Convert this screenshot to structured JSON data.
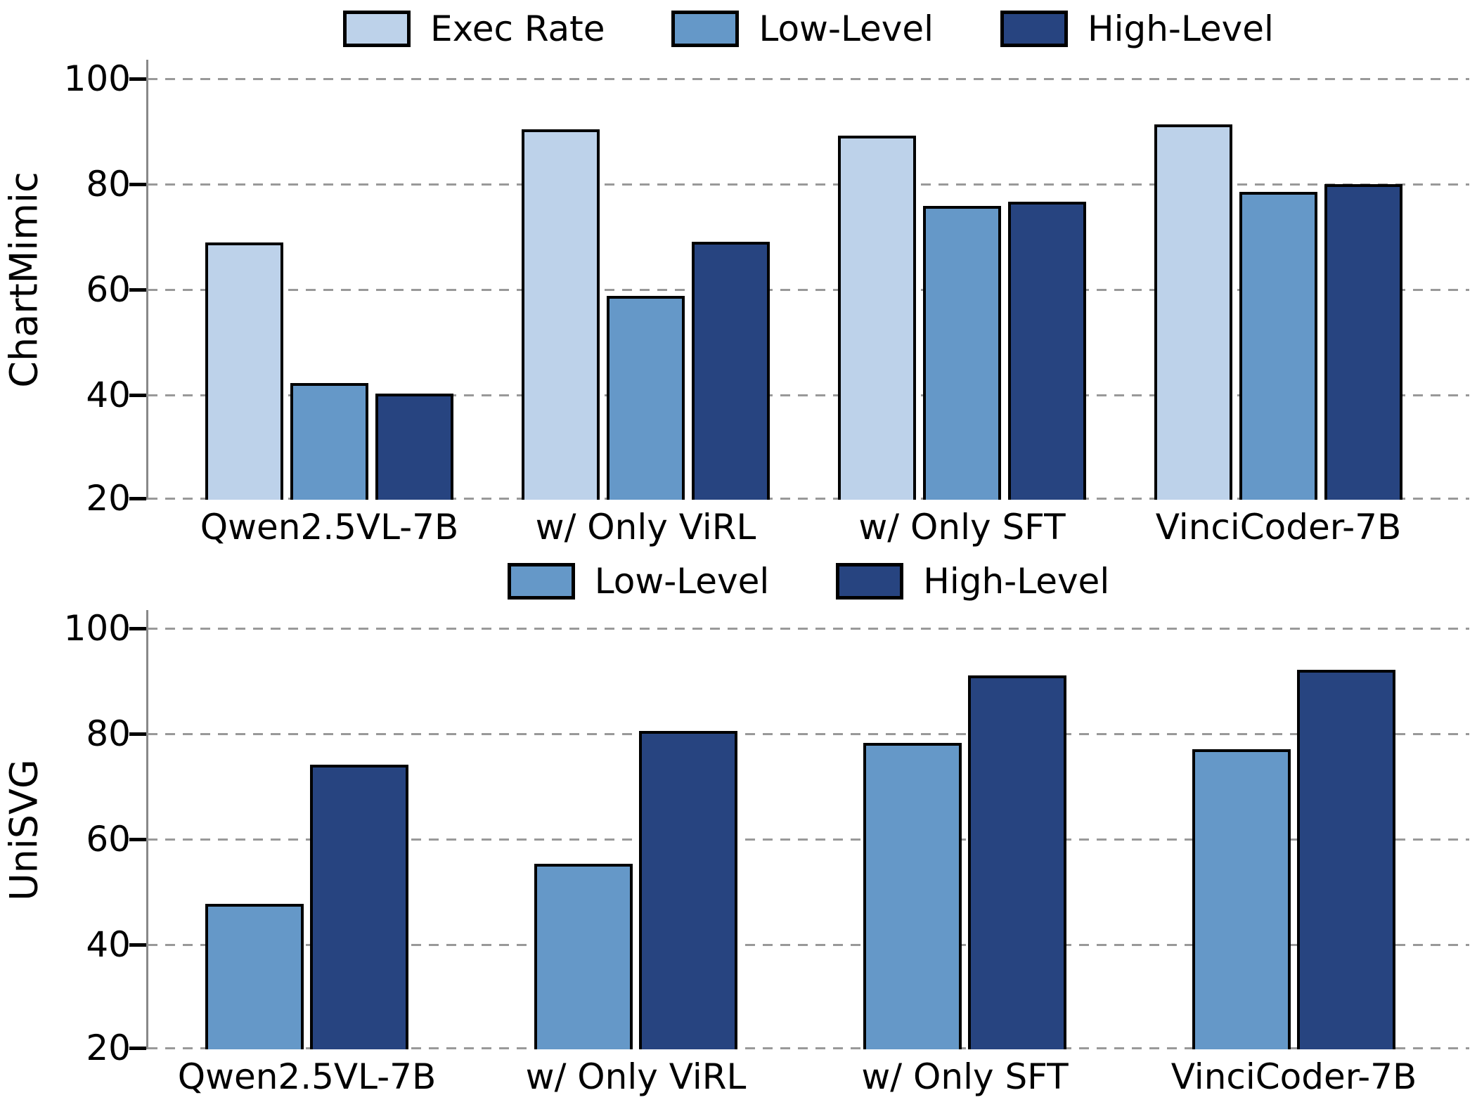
{
  "figure": {
    "background": "#ffffff"
  },
  "colors": {
    "exec": "#bdd2ea",
    "low": "#6598c8",
    "high": "#274480",
    "bar_edge": "#000000",
    "grid": "#999999",
    "spine": "#888888",
    "text": "#000000"
  },
  "chart_data": [
    {
      "id": "chartmimic",
      "type": "bar",
      "title": "",
      "ylabel": "ChartMimic",
      "xlabel": "",
      "categories": [
        "Qwen2.5VL-7B",
        "w/ Only ViRL",
        "w/ Only SFT",
        "VinciCoder-7B"
      ],
      "series": [
        {
          "name": "Exec Rate",
          "color": "exec",
          "values": [
            68.8,
            90.3,
            89.1,
            91.2
          ]
        },
        {
          "name": "Low-Level",
          "color": "low",
          "values": [
            42.2,
            58.7,
            75.8,
            78.4
          ]
        },
        {
          "name": "High-Level",
          "color": "high",
          "values": [
            40.2,
            69.0,
            76.5,
            79.9
          ]
        }
      ],
      "yticks": [
        100,
        80,
        60,
        40,
        20
      ],
      "ylim": [
        20,
        103.5
      ],
      "grid": true,
      "legend_position": "top-center"
    },
    {
      "id": "unisvg",
      "type": "bar",
      "title": "",
      "ylabel": "UniSVG",
      "xlabel": "",
      "categories": [
        "Qwen2.5VL-7B",
        "w/ Only ViRL",
        "w/ Only SFT",
        "VinciCoder-7B"
      ],
      "series": [
        {
          "name": "Low-Level",
          "color": "low",
          "values": [
            47.6,
            55.2,
            78.2,
            77.0
          ]
        },
        {
          "name": "High-Level",
          "color": "high",
          "values": [
            74.0,
            80.4,
            91.0,
            92.1
          ]
        }
      ],
      "yticks": [
        100,
        80,
        60,
        40,
        20
      ],
      "ylim": [
        20,
        103.4
      ],
      "grid": true,
      "legend_position": "top-center"
    }
  ]
}
